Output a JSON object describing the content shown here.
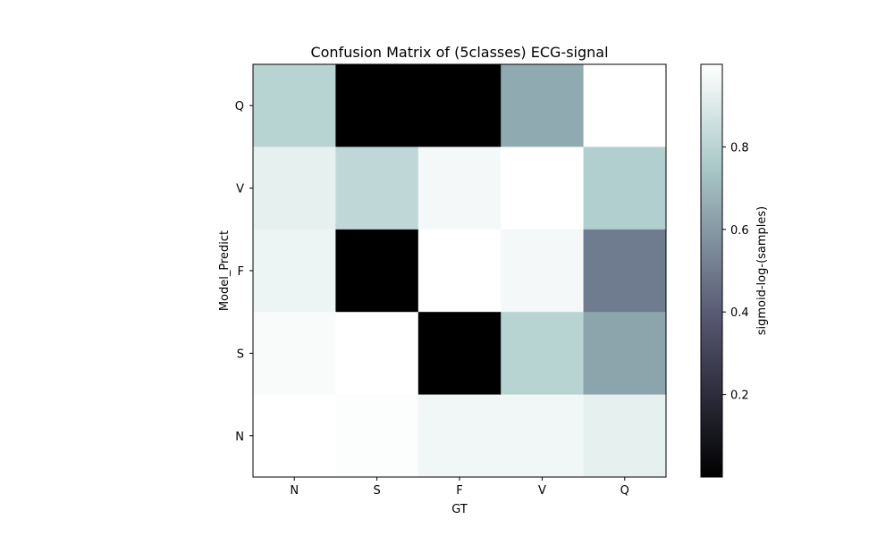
{
  "chart_data": {
    "type": "heatmap",
    "title": "Confusion Matrix of (5classes) ECG-signal",
    "xlabel": "GT",
    "ylabel": "Model_Predict",
    "x_categories": [
      "N",
      "S",
      "F",
      "V",
      "Q"
    ],
    "y_categories": [
      "Q",
      "V",
      "F",
      "S",
      "N"
    ],
    "values": [
      [
        0.8,
        0.0,
        0.0,
        0.65,
        1.0
      ],
      [
        0.93,
        0.82,
        0.97,
        1.0,
        0.78
      ],
      [
        0.95,
        0.0,
        1.0,
        0.97,
        0.5
      ],
      [
        0.98,
        1.0,
        0.0,
        0.8,
        0.63
      ],
      [
        1.0,
        0.99,
        0.96,
        0.96,
        0.93
      ]
    ],
    "colormap": "bone",
    "colorbar": {
      "label": "sigmoid-log-(samples)",
      "range": [
        0.0,
        1.0
      ],
      "ticks": [
        "0.2",
        "0.4",
        "0.6",
        "0.8"
      ]
    }
  }
}
